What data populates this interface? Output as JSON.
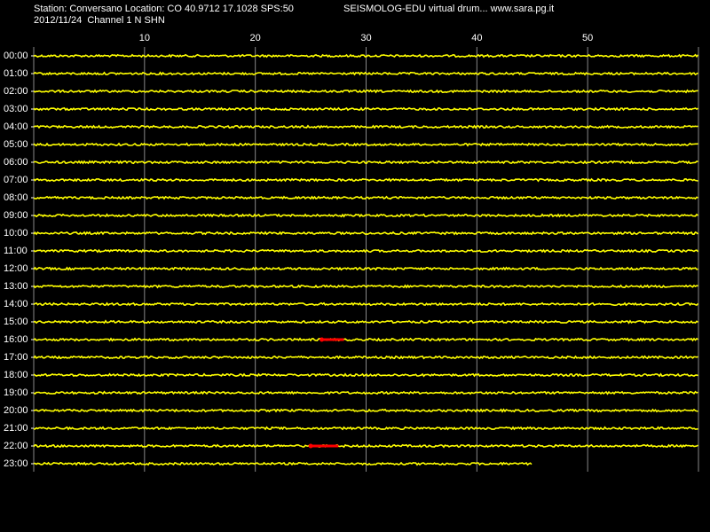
{
  "header": {
    "station": "Station: Conversano Location: CO 40.9712 17.1028 SPS:50",
    "program": "SEISMOLOG-EDU virtual drum... www.sara.pg.it",
    "date_channel": "2012/11/24  Channel 1 N SHN"
  },
  "chart_data": {
    "type": "helicorder",
    "xlim": [
      0,
      60
    ],
    "xticks": [
      10,
      20,
      30,
      40,
      50
    ],
    "rows": [
      "00:00",
      "01:00",
      "02:00",
      "03:00",
      "04:00",
      "05:00",
      "06:00",
      "07:00",
      "08:00",
      "09:00",
      "10:00",
      "11:00",
      "12:00",
      "13:00",
      "14:00",
      "15:00",
      "16:00",
      "17:00",
      "18:00",
      "19:00",
      "20:00",
      "21:00",
      "22:00",
      "23:00"
    ],
    "trace_color": "#ffff00",
    "event_color": "#ff0000",
    "last_row_end": 45,
    "events": [
      {
        "row": 16,
        "start": 26,
        "end": 28
      },
      {
        "row": 22,
        "start": 25,
        "end": 27.5
      }
    ]
  }
}
